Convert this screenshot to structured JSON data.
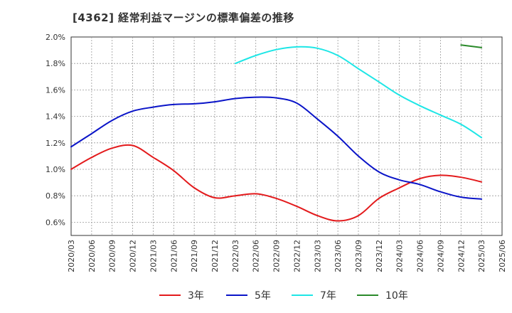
{
  "chart_data": {
    "type": "line",
    "title": "[4362]  経常利益マージンの標準偏差の推移",
    "xlabel": "",
    "ylabel": "",
    "ylim": [
      0.5,
      2.0
    ],
    "grid": true,
    "legend_position": "bottom",
    "y_ticks": [
      "0.6%",
      "0.8%",
      "1.0%",
      "1.2%",
      "1.4%",
      "1.6%",
      "1.8%",
      "2.0%"
    ],
    "x_ticks": [
      "2020/03",
      "2020/06",
      "2020/09",
      "2020/12",
      "2021/03",
      "2021/06",
      "2021/09",
      "2021/12",
      "2022/03",
      "2022/06",
      "2022/09",
      "2022/12",
      "2023/03",
      "2023/06",
      "2023/09",
      "2023/12",
      "2024/03",
      "2024/06",
      "2024/09",
      "2024/12",
      "2025/03",
      "2025/06"
    ],
    "series": [
      {
        "name": "3年",
        "color": "#e31a1c",
        "points": [
          [
            "2020/03",
            1.0
          ],
          [
            "2020/06",
            1.09
          ],
          [
            "2020/09",
            1.16
          ],
          [
            "2020/12",
            1.18
          ],
          [
            "2021/03",
            1.09
          ],
          [
            "2021/06",
            0.99
          ],
          [
            "2021/09",
            0.86
          ],
          [
            "2021/12",
            0.785
          ],
          [
            "2022/03",
            0.8
          ],
          [
            "2022/06",
            0.815
          ],
          [
            "2022/09",
            0.78
          ],
          [
            "2022/12",
            0.72
          ],
          [
            "2023/03",
            0.65
          ],
          [
            "2023/06",
            0.61
          ],
          [
            "2023/09",
            0.65
          ],
          [
            "2023/12",
            0.78
          ],
          [
            "2024/03",
            0.86
          ],
          [
            "2024/06",
            0.93
          ],
          [
            "2024/09",
            0.955
          ],
          [
            "2024/12",
            0.94
          ],
          [
            "2025/03",
            0.905
          ]
        ]
      },
      {
        "name": "5年",
        "color": "#0a14c8",
        "points": [
          [
            "2020/03",
            1.17
          ],
          [
            "2020/06",
            1.27
          ],
          [
            "2020/09",
            1.37
          ],
          [
            "2020/12",
            1.44
          ],
          [
            "2021/03",
            1.47
          ],
          [
            "2021/06",
            1.49
          ],
          [
            "2021/09",
            1.495
          ],
          [
            "2021/12",
            1.51
          ],
          [
            "2022/03",
            1.535
          ],
          [
            "2022/06",
            1.545
          ],
          [
            "2022/09",
            1.54
          ],
          [
            "2022/12",
            1.5
          ],
          [
            "2023/03",
            1.38
          ],
          [
            "2023/06",
            1.25
          ],
          [
            "2023/09",
            1.1
          ],
          [
            "2023/12",
            0.98
          ],
          [
            "2024/03",
            0.92
          ],
          [
            "2024/06",
            0.885
          ],
          [
            "2024/09",
            0.83
          ],
          [
            "2024/12",
            0.79
          ],
          [
            "2025/03",
            0.775
          ]
        ]
      },
      {
        "name": "7年",
        "color": "#1ee6e6",
        "points": [
          [
            "2022/03",
            1.8
          ],
          [
            "2022/06",
            1.86
          ],
          [
            "2022/09",
            1.905
          ],
          [
            "2022/12",
            1.925
          ],
          [
            "2023/03",
            1.915
          ],
          [
            "2023/06",
            1.86
          ],
          [
            "2023/09",
            1.76
          ],
          [
            "2023/12",
            1.66
          ],
          [
            "2024/03",
            1.56
          ],
          [
            "2024/06",
            1.48
          ],
          [
            "2024/09",
            1.41
          ],
          [
            "2024/12",
            1.34
          ],
          [
            "2025/03",
            1.24
          ]
        ]
      },
      {
        "name": "10年",
        "color": "#2a8a2a",
        "points": [
          [
            "2024/12",
            1.94
          ],
          [
            "2025/03",
            1.92
          ]
        ]
      }
    ]
  }
}
